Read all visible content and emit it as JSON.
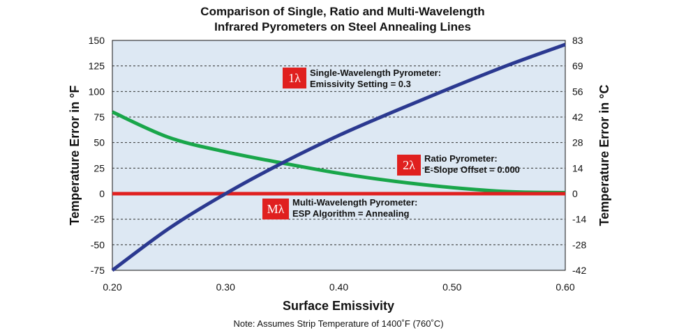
{
  "chart_data": {
    "type": "line",
    "title_line1": "Comparison of Single, Ratio and Multi-Wavelength",
    "title_line2": "Infrared Pyrometers on Steel Annealing Lines",
    "xlabel": "Surface Emissivity",
    "ylabel_left": "Temperature Error in °F",
    "ylabel_right": "Temperature Error in °C",
    "note": "Note: Assumes Strip Temperature of 1400˚F (760˚C)",
    "xlim": [
      0.2,
      0.6
    ],
    "ylim": [
      -75,
      150
    ],
    "x_ticks": [
      "0.20",
      "0.30",
      "0.40",
      "0.50",
      "0.60"
    ],
    "y_ticks_left": [
      "150",
      "125",
      "100",
      "75",
      "50",
      "25",
      "0",
      "-25",
      "-50",
      "-75"
    ],
    "y_ticks_right": [
      "83",
      "69",
      "56",
      "42",
      "28",
      "14",
      "0",
      "-14",
      "-28",
      "-42"
    ],
    "grid": "horizontal dashed",
    "colors": {
      "plot_bg": "#dde8f3",
      "single": "#2b3990",
      "ratio": "#19a64a",
      "multi": "#e0201f",
      "badge": "#e0201f"
    },
    "x": [
      0.2,
      0.25,
      0.3,
      0.35,
      0.4,
      0.45,
      0.5,
      0.55,
      0.6
    ],
    "series": [
      {
        "values": [
          -75,
          -34,
          0,
          30,
          57,
          81,
          104,
          126,
          146
        ]
      },
      {
        "values": [
          80,
          55,
          41,
          30,
          20,
          12,
          6,
          2,
          1
        ]
      },
      {
        "values": [
          0,
          0,
          0,
          0,
          0,
          0,
          0,
          0,
          0
        ]
      }
    ],
    "annotations": [
      {
        "badge": "1λ",
        "line1": "Single-Wavelength Pyrometer:",
        "line2": "Emissivity Setting = 0.3"
      },
      {
        "badge": "2λ",
        "line1": "Ratio Pyrometer:",
        "line2": "E-Slope Offset = 0.000"
      },
      {
        "badge": "Mλ",
        "line1": "Multi-Wavelength Pyrometer:",
        "line2": "ESP Algorithm = Annealing"
      }
    ]
  }
}
